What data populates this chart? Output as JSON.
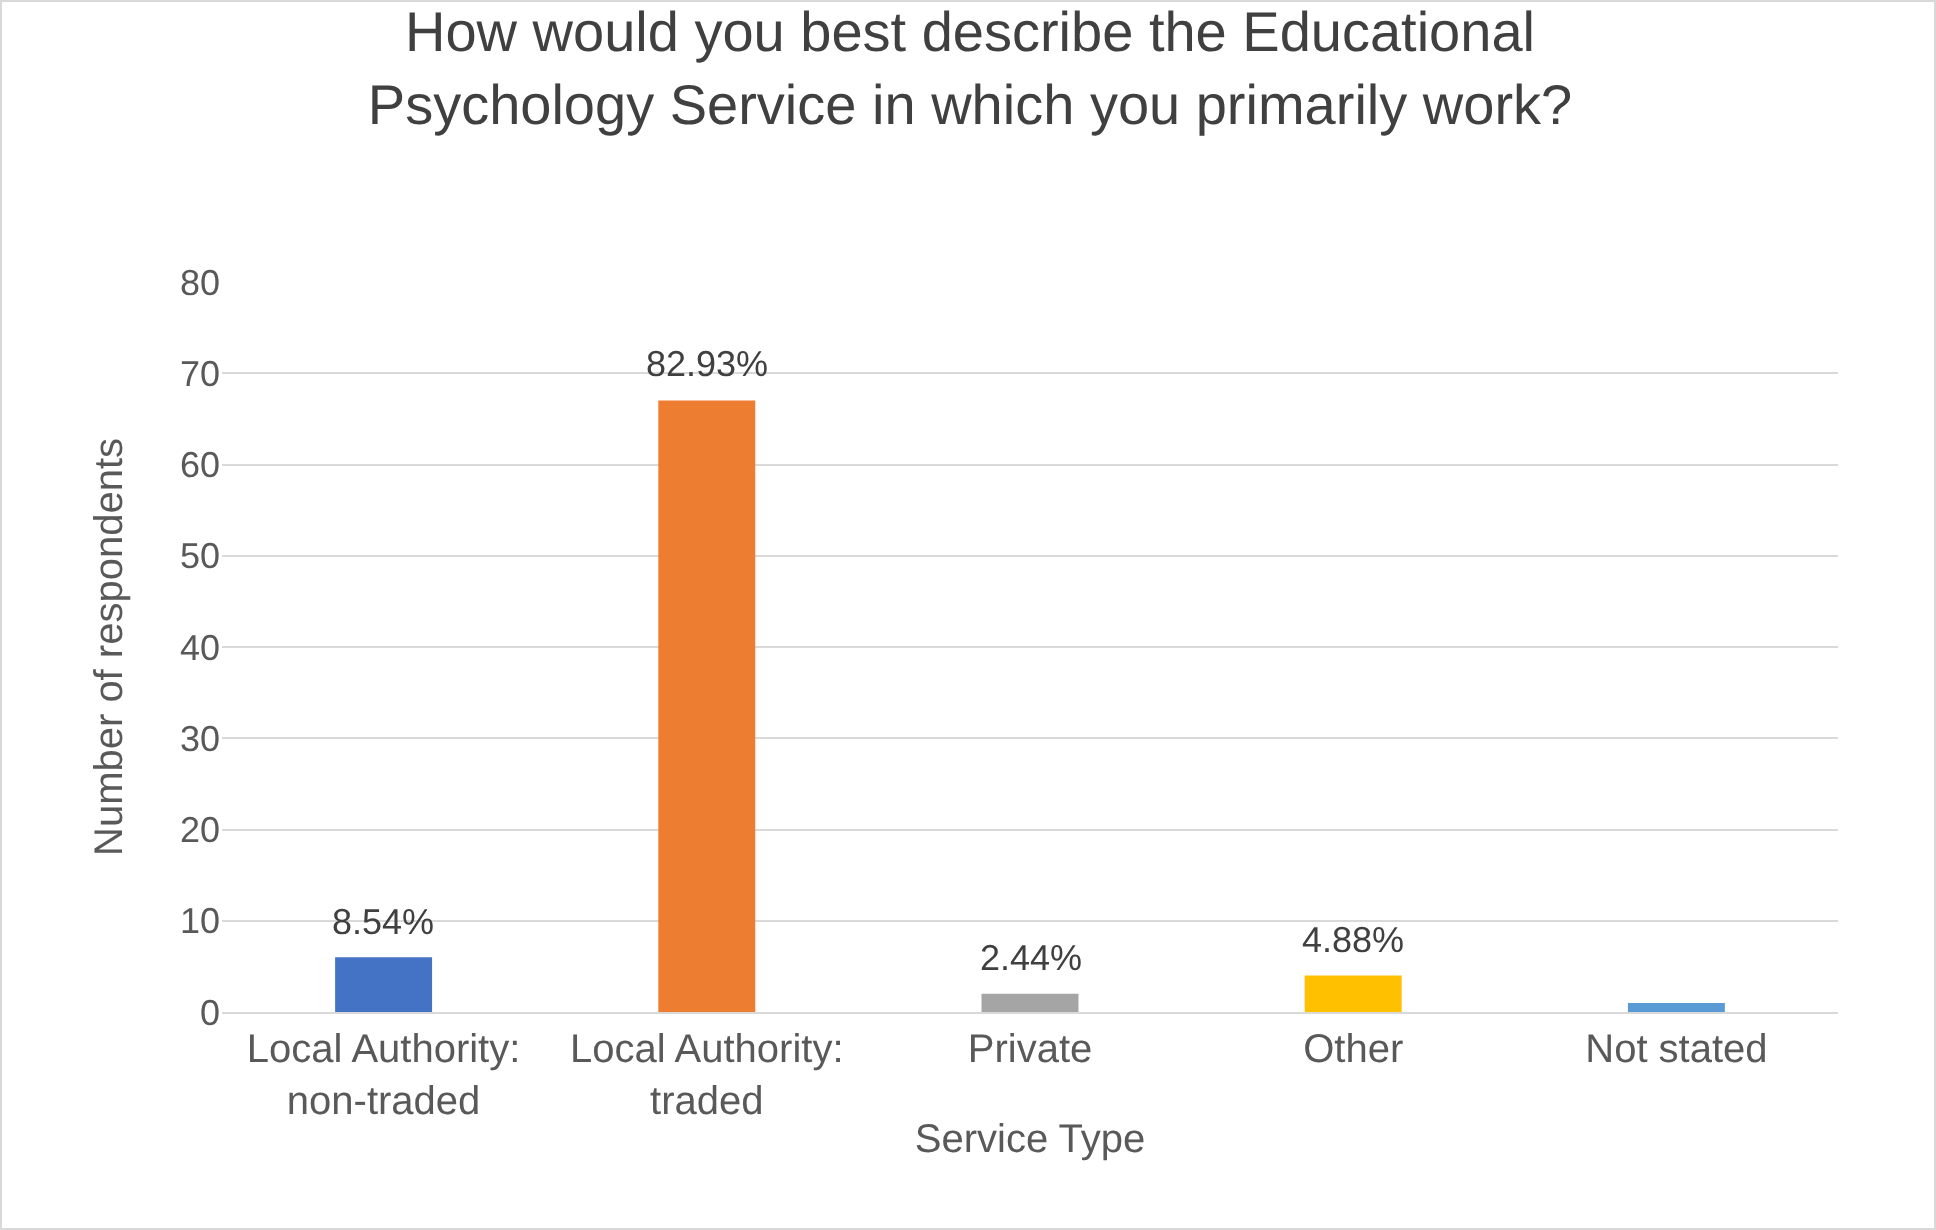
{
  "chart_data": {
    "type": "bar",
    "title": "How would you best describe the Educational Psychology Service in which you primarily work?",
    "xlabel": "Service Type",
    "ylabel": "Number of respondents",
    "categories": [
      "Local Authority: non-traded",
      "Local Authority: traded",
      "Private",
      "Other",
      "Not stated"
    ],
    "values": [
      6,
      67,
      2,
      4,
      1
    ],
    "colors": [
      "#4472c4",
      "#ed7d31",
      "#a5a5a5",
      "#ffc000",
      "#5b9bd5"
    ],
    "annotations": [
      {
        "text": "8.54%",
        "x": "Local Authority: non-traded",
        "y": 6
      },
      {
        "text": "82.93%",
        "x": "Local Authority: traded",
        "y": 67
      },
      {
        "text": "2.44%",
        "x": "Private",
        "y": 2
      },
      {
        "text": "4.88%",
        "x": "Other",
        "y": 4
      }
    ],
    "ylim": [
      0,
      80
    ],
    "yticks": [
      0,
      10,
      20,
      30,
      40,
      50,
      60,
      70,
      80
    ],
    "grid": "y"
  }
}
